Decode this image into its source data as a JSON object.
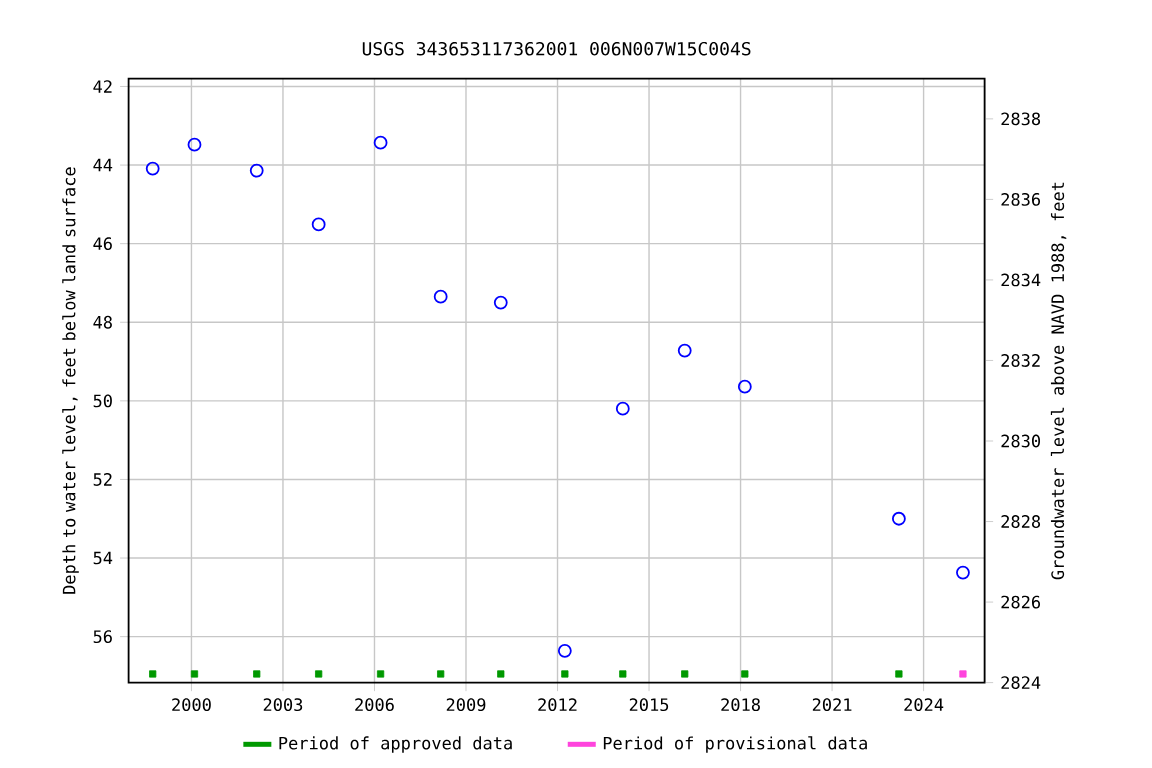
{
  "chart_data": {
    "type": "scatter",
    "title": "USGS 343653117362001 006N007W15C004S",
    "ylabel": "Depth to water level, feet below land surface",
    "y2label": "Groundwater level above NAVD 1988, feet",
    "xlim": [
      1997.94,
      2026.0
    ],
    "xticks": [
      2000,
      2003,
      2006,
      2009,
      2012,
      2015,
      2018,
      2021,
      2024
    ],
    "ylim": [
      57.17,
      41.8
    ],
    "yticks": [
      42,
      44,
      46,
      48,
      50,
      52,
      54,
      56
    ],
    "y2lim": [
      2824,
      2839
    ],
    "y2ticks": [
      2824,
      2826,
      2828,
      2830,
      2832,
      2834,
      2836,
      2838
    ],
    "grid": true,
    "legend": "bottom",
    "series": [
      {
        "marker": "circle",
        "color": "#0000ff",
        "x": [
          1998.73,
          2000.1,
          2002.14,
          2004.17,
          2006.2,
          2008.17,
          2010.14,
          2012.24,
          2014.14,
          2016.17,
          2018.14,
          2023.19,
          2025.29
        ],
        "values": [
          44.09,
          43.48,
          44.14,
          45.51,
          43.43,
          47.35,
          47.5,
          56.36,
          50.2,
          48.72,
          49.64,
          53.0,
          54.37
        ]
      },
      {
        "marker": "square",
        "name": "Period of approved data",
        "color": "#009900",
        "x": [
          1998.73,
          2000.1,
          2002.14,
          2004.17,
          2006.2,
          2008.17,
          2010.14,
          2012.24,
          2014.14,
          2016.17,
          2018.14,
          2023.19
        ],
        "values": [
          56.95,
          56.95,
          56.95,
          56.95,
          56.95,
          56.95,
          56.95,
          56.95,
          56.95,
          56.95,
          56.95,
          56.95
        ]
      },
      {
        "marker": "square",
        "name": "Period of provisional data",
        "color": "#ff44dd",
        "x": [
          2025.29
        ],
        "values": [
          56.95
        ]
      }
    ]
  }
}
